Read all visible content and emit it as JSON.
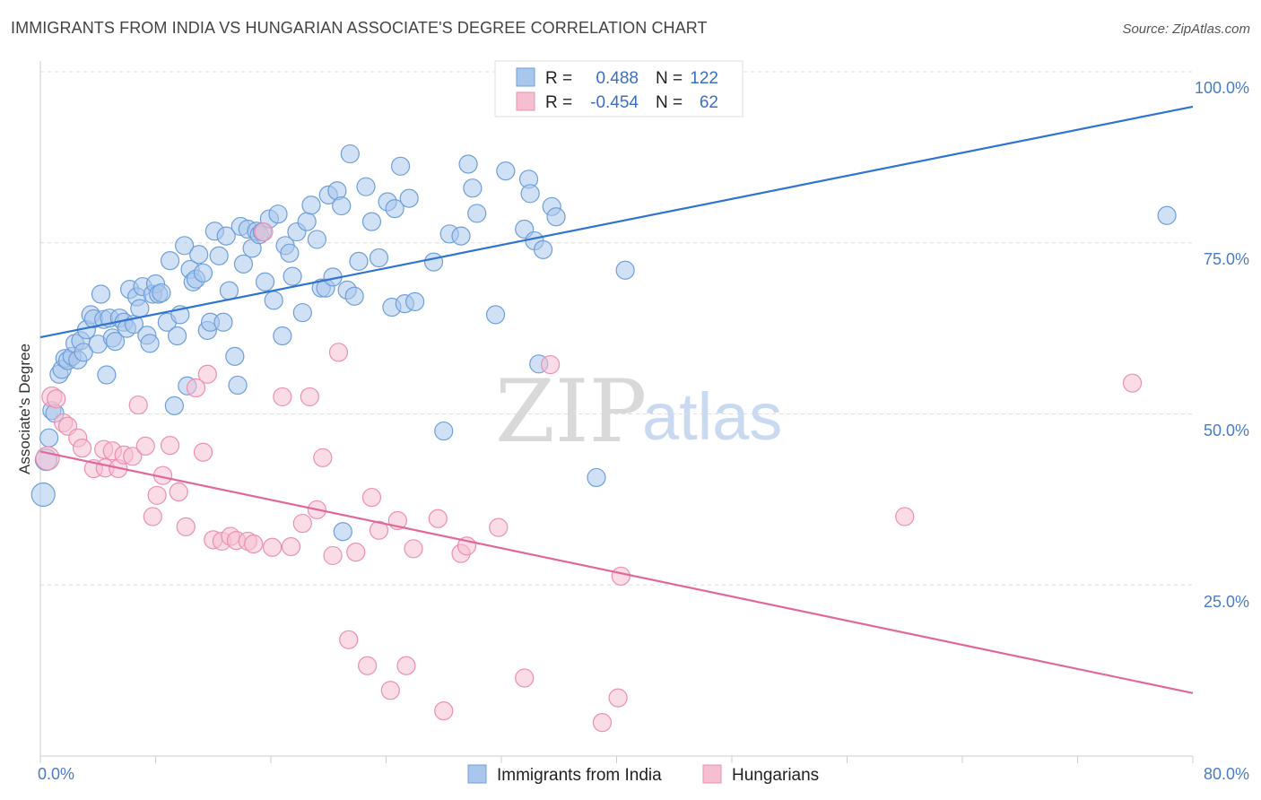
{
  "title": "IMMIGRANTS FROM INDIA VS HUNGARIAN ASSOCIATE'S DEGREE CORRELATION CHART",
  "source": "Source: ZipAtlas.com",
  "watermark": {
    "zip": "ZIP",
    "atlas": "atlas"
  },
  "colors": {
    "blue_fill": "#a9c6ec",
    "blue_stroke": "#6f9fd8",
    "blue_line": "#2f74d0",
    "pink_fill": "#f5bfd1",
    "pink_stroke": "#ec8fb0",
    "pink_line": "#e0689a",
    "grid": "#dddddd",
    "tick_text": "#4a7cc4"
  },
  "legend": {
    "rows": [
      {
        "r_label": "R =",
        "r_value": "0.488",
        "n_label": "N =",
        "n_value": "122"
      },
      {
        "r_label": "R =",
        "r_value": "-0.454",
        "n_label": "N =",
        "n_value": "62"
      }
    ]
  },
  "chart_data": {
    "type": "scatter",
    "xlabel": "",
    "ylabel": "Associate's Degree",
    "xlim": [
      0,
      80
    ],
    "ylim": [
      0,
      100
    ],
    "x_tick_labels": [
      "0.0%",
      "80.0%"
    ],
    "y_tick_labels": [
      "100.0%",
      "75.0%",
      "50.0%",
      "25.0%"
    ],
    "y_ticks": [
      100,
      75,
      50,
      25
    ],
    "grid": "horizontal dashed",
    "legend_position": "top-center and bottom",
    "series": [
      {
        "name": "Immigrants from India",
        "color": "#a9c6ec",
        "trend": {
          "x": [
            0,
            80
          ],
          "y": [
            61.2,
            94.9
          ]
        },
        "points": [
          [
            0.2,
            38.2
          ],
          [
            0.4,
            43.3
          ],
          [
            0.6,
            46.5
          ],
          [
            0.8,
            50.5
          ],
          [
            1.0,
            50.1
          ],
          [
            1.3,
            55.8
          ],
          [
            1.5,
            56.5
          ],
          [
            1.7,
            58.1
          ],
          [
            1.9,
            57.8
          ],
          [
            2.2,
            58.4
          ],
          [
            2.4,
            60.3
          ],
          [
            2.6,
            57.9
          ],
          [
            2.8,
            60.7
          ],
          [
            3.0,
            59.0
          ],
          [
            3.2,
            62.3
          ],
          [
            3.5,
            64.5
          ],
          [
            3.7,
            63.9
          ],
          [
            4.0,
            60.2
          ],
          [
            4.2,
            67.5
          ],
          [
            4.4,
            63.8
          ],
          [
            4.6,
            55.7
          ],
          [
            4.8,
            64.0
          ],
          [
            5.0,
            61.1
          ],
          [
            5.2,
            60.6
          ],
          [
            5.5,
            64.0
          ],
          [
            5.8,
            63.4
          ],
          [
            6.0,
            62.5
          ],
          [
            6.2,
            68.2
          ],
          [
            6.5,
            63.1
          ],
          [
            6.7,
            67.1
          ],
          [
            6.9,
            65.4
          ],
          [
            7.1,
            68.6
          ],
          [
            7.4,
            61.5
          ],
          [
            7.6,
            60.3
          ],
          [
            7.8,
            67.5
          ],
          [
            8.0,
            69.0
          ],
          [
            8.2,
            67.5
          ],
          [
            8.4,
            67.7
          ],
          [
            8.8,
            63.4
          ],
          [
            9.0,
            72.4
          ],
          [
            9.3,
            51.2
          ],
          [
            9.5,
            61.4
          ],
          [
            9.7,
            64.5
          ],
          [
            10.0,
            74.6
          ],
          [
            10.2,
            54.1
          ],
          [
            10.4,
            71.1
          ],
          [
            10.6,
            69.3
          ],
          [
            10.8,
            69.7
          ],
          [
            11.0,
            73.3
          ],
          [
            11.3,
            70.6
          ],
          [
            11.6,
            62.2
          ],
          [
            11.8,
            63.4
          ],
          [
            12.1,
            76.7
          ],
          [
            12.4,
            73.1
          ],
          [
            12.7,
            63.4
          ],
          [
            12.9,
            76.0
          ],
          [
            13.1,
            68.0
          ],
          [
            13.5,
            58.4
          ],
          [
            13.7,
            54.2
          ],
          [
            13.9,
            77.4
          ],
          [
            14.1,
            71.9
          ],
          [
            14.4,
            77.0
          ],
          [
            14.7,
            74.2
          ],
          [
            15.0,
            76.7
          ],
          [
            15.2,
            76.2
          ],
          [
            15.4,
            76.6
          ],
          [
            15.6,
            69.3
          ],
          [
            15.9,
            78.5
          ],
          [
            16.2,
            66.6
          ],
          [
            16.5,
            79.2
          ],
          [
            16.8,
            61.4
          ],
          [
            17.0,
            74.6
          ],
          [
            17.3,
            73.5
          ],
          [
            17.5,
            70.1
          ],
          [
            17.8,
            76.6
          ],
          [
            18.2,
            64.8
          ],
          [
            18.5,
            78.1
          ],
          [
            18.8,
            80.5
          ],
          [
            19.2,
            75.5
          ],
          [
            19.5,
            68.4
          ],
          [
            19.8,
            68.4
          ],
          [
            20.0,
            82.0
          ],
          [
            20.3,
            70.0
          ],
          [
            20.6,
            82.6
          ],
          [
            20.9,
            80.4
          ],
          [
            21.3,
            68.1
          ],
          [
            21.5,
            88.0
          ],
          [
            21.8,
            67.2
          ],
          [
            22.1,
            72.3
          ],
          [
            22.6,
            83.2
          ],
          [
            23.0,
            78.1
          ],
          [
            23.5,
            72.8
          ],
          [
            24.1,
            81.0
          ],
          [
            24.4,
            65.6
          ],
          [
            24.6,
            80.0
          ],
          [
            25.0,
            86.2
          ],
          [
            25.3,
            66.1
          ],
          [
            25.6,
            81.5
          ],
          [
            26.0,
            66.4
          ],
          [
            27.3,
            72.2
          ],
          [
            28.0,
            47.5
          ],
          [
            28.4,
            76.3
          ],
          [
            29.2,
            76.0
          ],
          [
            29.7,
            86.5
          ],
          [
            30.0,
            83.0
          ],
          [
            30.3,
            79.3
          ],
          [
            31.6,
            64.5
          ],
          [
            32.3,
            85.5
          ],
          [
            33.6,
            77.0
          ],
          [
            33.9,
            84.3
          ],
          [
            34.0,
            82.2
          ],
          [
            34.3,
            75.3
          ],
          [
            34.6,
            57.3
          ],
          [
            34.9,
            74.0
          ],
          [
            35.5,
            80.3
          ],
          [
            35.8,
            78.8
          ],
          [
            38.6,
            40.7
          ],
          [
            40.6,
            71.0
          ],
          [
            21.0,
            32.8
          ],
          [
            78.2,
            79.0
          ]
        ]
      },
      {
        "name": "Hungarians",
        "color": "#f5bfd1",
        "trend": {
          "x": [
            0,
            80
          ],
          "y": [
            44.5,
            9.2
          ]
        },
        "points": [
          [
            0.5,
            43.5
          ],
          [
            0.8,
            52.5
          ],
          [
            1.1,
            52.2
          ],
          [
            1.6,
            48.7
          ],
          [
            1.9,
            48.2
          ],
          [
            2.6,
            46.5
          ],
          [
            2.9,
            45.0
          ],
          [
            3.7,
            42.0
          ],
          [
            4.4,
            44.8
          ],
          [
            4.5,
            42.1
          ],
          [
            5.0,
            44.6
          ],
          [
            5.4,
            42.0
          ],
          [
            5.8,
            44.0
          ],
          [
            6.4,
            43.8
          ],
          [
            6.8,
            51.3
          ],
          [
            7.3,
            45.3
          ],
          [
            7.8,
            35.0
          ],
          [
            8.1,
            38.1
          ],
          [
            8.5,
            41.0
          ],
          [
            9.0,
            45.4
          ],
          [
            9.6,
            38.6
          ],
          [
            10.1,
            33.5
          ],
          [
            10.8,
            53.8
          ],
          [
            11.3,
            44.4
          ],
          [
            11.6,
            55.8
          ],
          [
            12.0,
            31.6
          ],
          [
            12.6,
            31.4
          ],
          [
            13.2,
            32.1
          ],
          [
            13.6,
            31.5
          ],
          [
            14.4,
            31.4
          ],
          [
            14.8,
            31.0
          ],
          [
            15.5,
            76.6
          ],
          [
            16.1,
            30.5
          ],
          [
            16.8,
            52.5
          ],
          [
            17.4,
            30.6
          ],
          [
            18.2,
            34.0
          ],
          [
            18.7,
            52.5
          ],
          [
            19.2,
            36.0
          ],
          [
            19.6,
            43.6
          ],
          [
            20.3,
            29.3
          ],
          [
            20.7,
            59.0
          ],
          [
            21.4,
            17.0
          ],
          [
            21.9,
            29.8
          ],
          [
            22.7,
            13.2
          ],
          [
            23.0,
            37.8
          ],
          [
            23.5,
            33.0
          ],
          [
            24.3,
            9.6
          ],
          [
            24.8,
            34.4
          ],
          [
            25.4,
            13.2
          ],
          [
            25.9,
            30.3
          ],
          [
            27.6,
            34.7
          ],
          [
            28.0,
            6.6
          ],
          [
            29.2,
            29.6
          ],
          [
            29.6,
            30.7
          ],
          [
            31.8,
            33.4
          ],
          [
            33.6,
            11.4
          ],
          [
            35.4,
            57.2
          ],
          [
            39.0,
            4.9
          ],
          [
            40.1,
            8.5
          ],
          [
            40.3,
            26.3
          ],
          [
            60.0,
            35.0
          ],
          [
            75.8,
            54.5
          ]
        ]
      }
    ]
  },
  "bottom_legend": [
    {
      "label": "Immigrants from India"
    },
    {
      "label": "Hungarians"
    }
  ]
}
